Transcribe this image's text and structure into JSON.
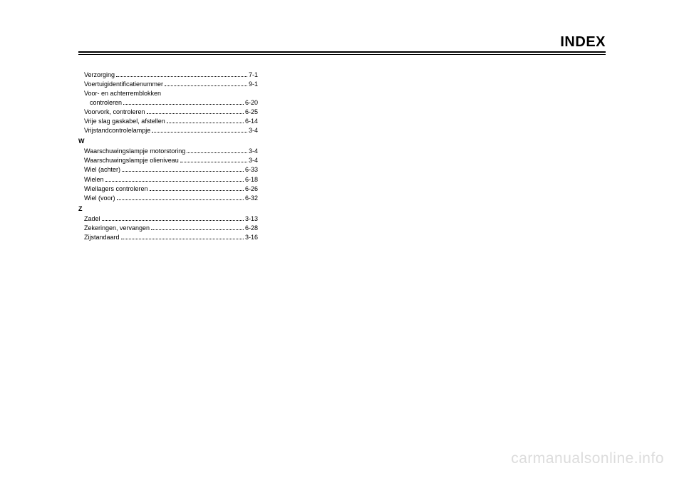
{
  "header": {
    "title": "INDEX"
  },
  "watermark": "carmanualsonline.info",
  "index": {
    "groupV": [
      {
        "label": "Verzorging",
        "page": "7-1"
      },
      {
        "label": "Voertuigidentificatienummer",
        "page": "9-1"
      },
      {
        "label": "Voor- en achterremblokken",
        "cont_label": "controleren",
        "page": "6-20"
      },
      {
        "label": "Voorvork, controleren",
        "page": "6-25"
      },
      {
        "label": "Vrije slag gaskabel, afstellen",
        "page": "6-14"
      },
      {
        "label": "Vrijstandcontrolelampje",
        "page": "3-4"
      }
    ],
    "letterW": "W",
    "groupW": [
      {
        "label": "Waarschuwingslampje motorstoring",
        "page": "3-4"
      },
      {
        "label": "Waarschuwingslampje olieniveau",
        "page": "3-4"
      },
      {
        "label": "Wiel (achter)",
        "page": "6-33"
      },
      {
        "label": "Wielen",
        "page": "6-18"
      },
      {
        "label": "Wiellagers controleren",
        "page": "6-26"
      },
      {
        "label": "Wiel (voor)",
        "page": "6-32"
      }
    ],
    "letterZ": "Z",
    "groupZ": [
      {
        "label": "Zadel",
        "page": "3-13"
      },
      {
        "label": "Zekeringen, vervangen",
        "page": "6-28"
      },
      {
        "label": "Zijstandaard",
        "page": "3-16"
      }
    ]
  }
}
